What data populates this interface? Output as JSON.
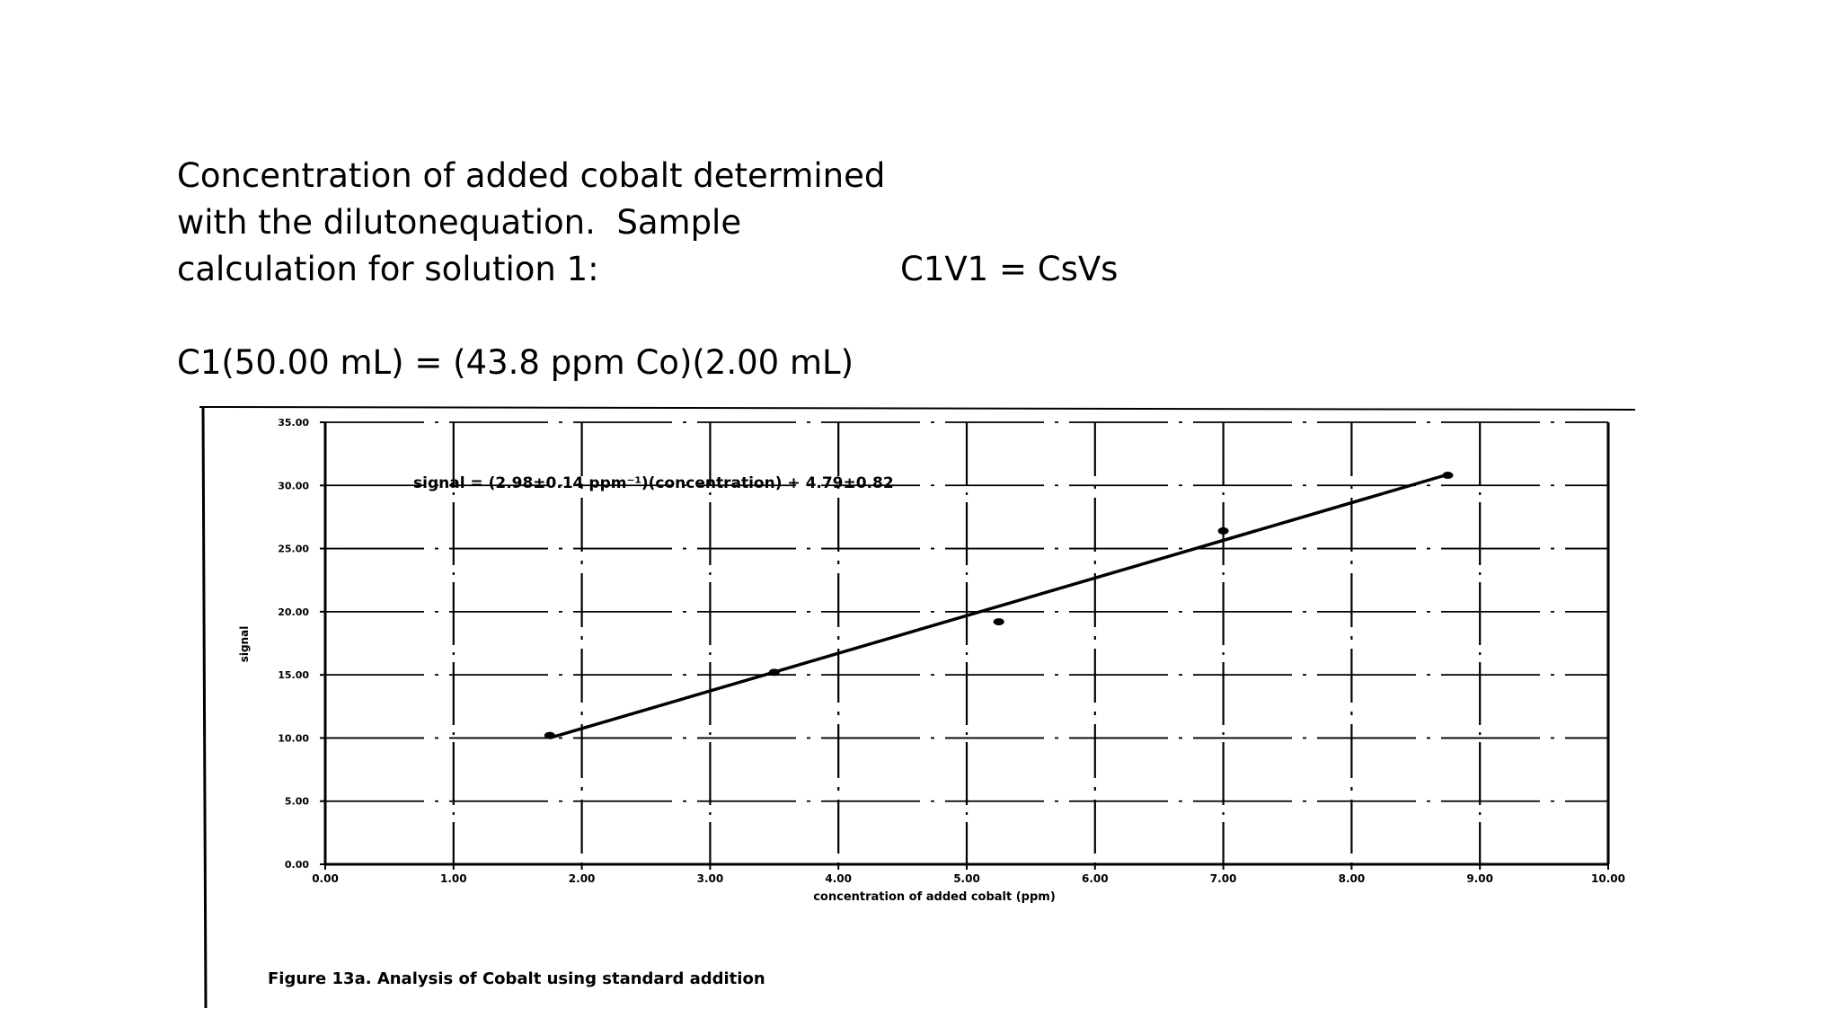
{
  "text_block": {
    "line1": "Concentration of added cobalt determined",
    "line2": "with the dilutonequation.  Sample",
    "line3": "calculation for solution 1:",
    "equation_general": "C1V1 = CsVs",
    "equation_sample": "C1(50.00 mL) = (43.8 ppm Co)(2.00 mL)"
  },
  "chart_data": {
    "type": "scatter",
    "caption": "Figure 13a.  Analysis of Cobalt using standard addition",
    "xlabel": "concentration of added cobalt (ppm)",
    "ylabel": "signal",
    "xlim": [
      0,
      10
    ],
    "ylim": [
      0,
      35
    ],
    "x_ticks": [
      "0.00",
      "1.00",
      "2.00",
      "3.00",
      "4.00",
      "5.00",
      "6.00",
      "7.00",
      "8.00",
      "9.00",
      "10.00"
    ],
    "y_ticks": [
      "0.00",
      "5.00",
      "10.00",
      "15.00",
      "20.00",
      "25.00",
      "30.00",
      "35.00"
    ],
    "grid": true,
    "annotation": "signal = (2.98±0.14 ppm⁻¹)(concentration) + 4.79±0.82",
    "points": [
      {
        "x": 1.75,
        "y": 10.2
      },
      {
        "x": 3.5,
        "y": 15.2
      },
      {
        "x": 5.25,
        "y": 19.2
      },
      {
        "x": 7.0,
        "y": 26.4
      },
      {
        "x": 8.75,
        "y": 30.8
      }
    ],
    "fit": {
      "slope": 2.98,
      "intercept": 4.79,
      "x_range": [
        1.75,
        8.75
      ]
    }
  }
}
